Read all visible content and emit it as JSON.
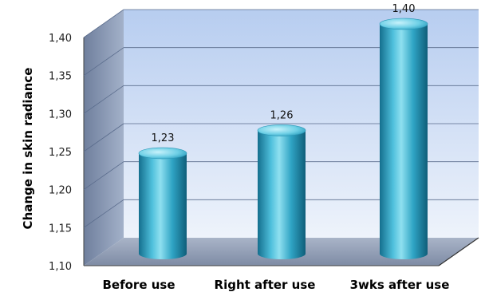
{
  "chart_data": {
    "type": "bar",
    "categories": [
      "Before use",
      "Right after use",
      "3wks after use"
    ],
    "values": [
      1.23,
      1.26,
      1.4
    ],
    "value_labels": [
      "1,23",
      "1,26",
      "1,40"
    ],
    "ylabel": "Change in skin radiance",
    "ylim": [
      1.1,
      1.4
    ],
    "yticks": [
      1.1,
      1.15,
      1.2,
      1.25,
      1.3,
      1.35,
      1.4
    ],
    "ytick_labels": [
      "1,10",
      "1,15",
      "1,20",
      "1,25",
      "1,30",
      "1,35",
      "1,40"
    ],
    "grid": true,
    "style": "3d-cylinder",
    "colors": {
      "bar_light": "#7fd6ea",
      "bar_mid": "#2fa4c4",
      "bar_dark": "#146f8e",
      "wall_top": "#b7cdf0",
      "wall_bottom": "#eef3fb",
      "floor": "#8d9ab3",
      "side_wall": "#7a8aa6"
    }
  }
}
